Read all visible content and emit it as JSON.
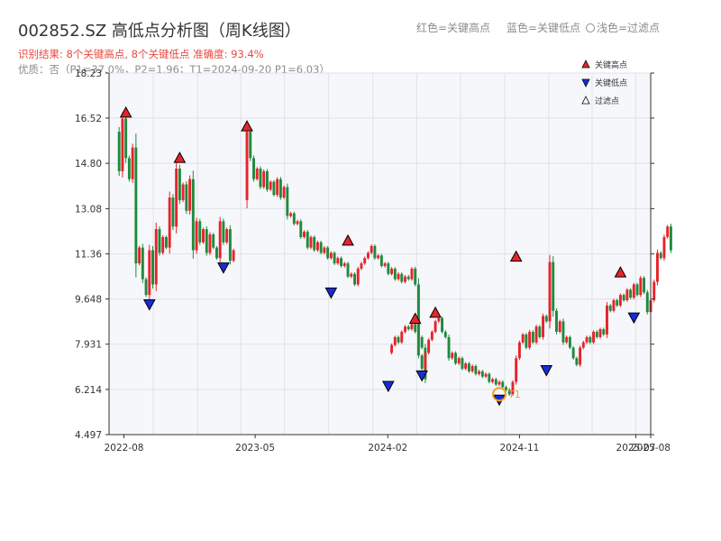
{
  "chart_data": {
    "type": "candlestick",
    "title": "002852.SZ 高低点分析图（周K线图）",
    "subtitle": "识别结果: 8个关键高点, 8个关键低点  准确度: 93.4%",
    "info": "优质：否（P1=37.0%，P2=1.96；T1=2024-09-20 P1=6.03）",
    "top_legend": {
      "red": "红色=关键高点",
      "blue": "蓝色=关键低点",
      "light": "浅色=过滤点"
    },
    "legend": [
      {
        "label": "关键高点",
        "color": "#e8232b"
      },
      {
        "label": "关键低点",
        "color": "#1b2bd9"
      },
      {
        "label": "过滤点",
        "color": "#ffffff"
      }
    ],
    "x_tick_labels": [
      "2022-08",
      "2023-05",
      "2024-02",
      "2024-11",
      "2025-07",
      "2025-08"
    ],
    "x_tick_dates": [
      "2022-08",
      "2023-05",
      "2024-02",
      "2024-11",
      "2025-07",
      "2025-08"
    ],
    "y_tick_labels": [
      "4.497",
      "6.214",
      "7.931",
      "9.648",
      "11.36",
      "13.08",
      "14.80",
      "16.52",
      "18.23"
    ],
    "ylim": [
      4.497,
      18.23
    ],
    "xlim": [
      "2022-07",
      "2025-08"
    ],
    "grid": true,
    "legend_position": "top-right",
    "up_color": "#e8232b",
    "down_color": "#1f8a3c",
    "high_marker_color": "#e8232b",
    "low_marker_color": "#1b2bd9",
    "t1_color": "#f0a020",
    "t1_label": "T1",
    "t1_point": {
      "date": "2024-09-20",
      "price": 6.03
    },
    "key_highs": [
      {
        "date": "2022-08-05",
        "price": 16.52
      },
      {
        "date": "2022-11-25",
        "price": 14.8
      },
      {
        "date": "2023-04-14",
        "price": 16.0
      },
      {
        "date": "2023-11-10",
        "price": 11.66
      },
      {
        "date": "2024-03-29",
        "price": 8.69
      },
      {
        "date": "2024-05-10",
        "price": 8.92
      },
      {
        "date": "2024-10-25",
        "price": 11.05
      },
      {
        "date": "2025-05-30",
        "price": 10.45
      }
    ],
    "key_lows": [
      {
        "date": "2022-09-23",
        "price": 9.65
      },
      {
        "date": "2023-02-24",
        "price": 11.05
      },
      {
        "date": "2023-10-06",
        "price": 10.1
      },
      {
        "date": "2024-02-02",
        "price": 6.55
      },
      {
        "date": "2024-04-12",
        "price": 6.95
      },
      {
        "date": "2024-09-20",
        "price": 6.03
      },
      {
        "date": "2024-12-27",
        "price": 7.15
      },
      {
        "date": "2025-06-27",
        "price": 9.15
      }
    ],
    "segments": [
      {
        "start": "2022-07-22",
        "values": [
          16.0,
          14.5,
          16.5,
          15.0,
          14.2,
          15.4,
          11.0,
          11.6,
          10.4,
          9.8,
          11.5,
          10.2,
          12.3,
          11.4,
          12.0,
          11.6,
          13.5,
          12.4,
          14.6,
          13.4,
          14.0,
          13.0,
          14.2,
          11.5,
          12.6,
          11.8,
          12.3,
          11.4,
          12.1,
          11.6,
          11.2,
          12.6,
          11.8,
          12.3,
          11.1,
          11.5
        ]
      },
      {
        "start": "2023-04-14",
        "values": [
          13.4,
          16.0,
          15.0,
          14.2,
          14.6,
          13.9,
          14.5,
          13.8,
          14.1,
          13.6,
          14.2,
          13.5,
          13.9,
          12.8,
          12.9,
          12.5,
          12.6,
          12.0,
          12.2,
          11.6,
          12.0,
          11.5,
          11.8,
          11.4,
          11.6,
          11.2,
          11.4,
          11.0,
          11.2,
          10.9,
          11.0,
          10.5,
          10.6,
          10.2,
          10.8,
          11.0,
          11.2,
          11.4,
          11.66,
          11.2,
          11.3,
          10.9,
          11.0,
          10.6,
          10.8,
          10.4,
          10.6,
          10.3,
          10.5,
          10.4,
          10.8,
          10.2,
          8.2,
          7.8,
          6.6
        ]
      },
      {
        "start": "2024-02-09",
        "values": [
          7.6,
          7.9,
          8.2,
          8.0,
          8.4,
          8.6,
          8.5,
          8.69,
          8.4,
          7.5,
          7.0,
          7.6,
          8.1,
          8.4,
          8.8,
          8.92,
          8.4,
          8.2,
          7.4,
          7.6,
          7.2,
          7.4,
          7.0,
          7.2,
          6.9,
          7.1,
          6.8,
          6.9,
          6.7,
          6.8,
          6.5,
          6.6,
          6.4,
          6.5,
          6.3,
          6.2,
          6.03,
          6.5,
          7.4,
          8.0,
          8.3,
          7.8,
          8.4,
          8.0,
          8.6,
          8.2,
          9.0,
          8.8,
          11.05,
          9.2,
          8.4,
          8.8,
          8.0,
          8.2,
          7.8,
          7.4,
          7.15,
          7.8,
          8.0,
          8.2,
          8.0,
          8.4,
          8.2,
          8.5,
          8.3,
          9.4,
          9.2,
          9.6,
          9.4,
          9.8,
          9.6,
          10.0,
          9.7,
          10.2,
          9.8,
          10.45,
          9.9,
          9.15,
          9.6,
          10.3,
          11.4,
          11.2,
          12.0,
          12.4,
          11.5
        ]
      }
    ]
  }
}
